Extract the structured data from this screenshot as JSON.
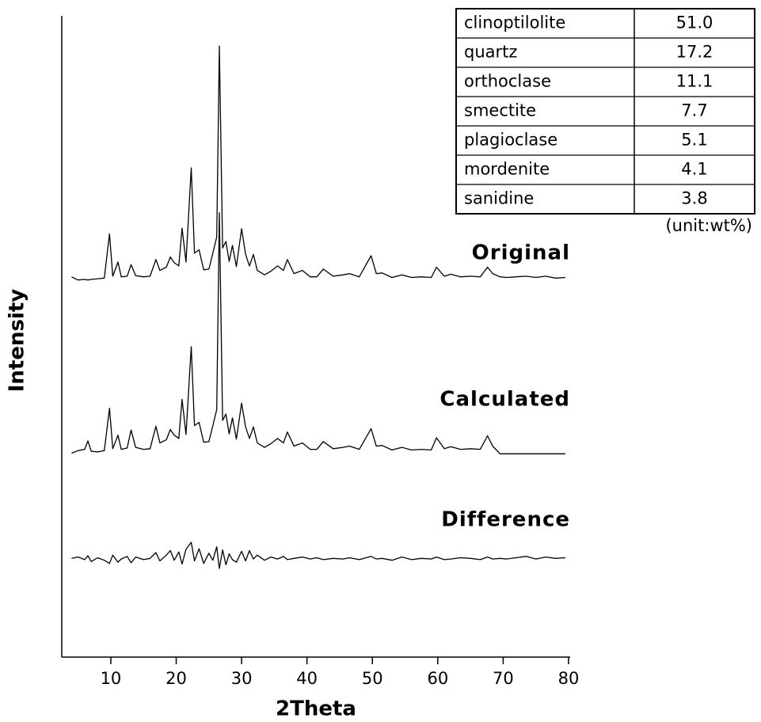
{
  "chart_data": {
    "type": "line",
    "xlabel": "2Theta",
    "ylabel": "Intensity",
    "xlim": [
      2.5,
      80
    ],
    "ylim": [
      0,
      100
    ],
    "xticks": [
      10,
      20,
      30,
      40,
      50,
      60,
      70,
      80
    ],
    "x": [
      4,
      5,
      6,
      6.5,
      7,
      8,
      9,
      9.8,
      10.3,
      11.1,
      11.6,
      12.5,
      13.1,
      13.8,
      15,
      16,
      16.9,
      17.5,
      18.5,
      19.1,
      19.7,
      20.4,
      20.9,
      21.5,
      22.3,
      22.8,
      23.5,
      24.2,
      25,
      25.6,
      26.2,
      26.6,
      27.1,
      27.6,
      28.1,
      28.6,
      29.2,
      30,
      30.6,
      31.2,
      31.8,
      32.4,
      33.5,
      34.5,
      35.5,
      36.4,
      37,
      38,
      39.3,
      40.5,
      41.5,
      42.5,
      44,
      45.5,
      46.5,
      48,
      49.8,
      50.6,
      51.5,
      53,
      54.5,
      56,
      57.5,
      59,
      59.8,
      61,
      62,
      63.5,
      65,
      66.5,
      67.6,
      68.4,
      69.5,
      70.5,
      72,
      73.5,
      75,
      76.5,
      78,
      79.5
    ],
    "series": [
      {
        "name": "Original",
        "color": "#000000",
        "values": [
          59.3,
          58.8,
          58.9,
          58.8,
          58.9,
          59.0,
          59.1,
          66.0,
          59.4,
          61.6,
          59.3,
          59.4,
          61.2,
          59.5,
          59.3,
          59.4,
          62.0,
          60.3,
          60.8,
          62.4,
          61.5,
          61.0,
          66.9,
          61.6,
          76.3,
          63.0,
          63.5,
          60.4,
          60.5,
          63.0,
          65.5,
          95.3,
          63.8,
          64.8,
          61.7,
          64.2,
          60.9,
          66.8,
          62.8,
          61.0,
          62.8,
          60.3,
          59.6,
          60.2,
          61.0,
          60.3,
          62.0,
          59.8,
          60.3,
          59.3,
          59.3,
          60.5,
          59.4,
          59.6,
          59.8,
          59.3,
          62.6,
          59.8,
          59.9,
          59.2,
          59.6,
          59.2,
          59.3,
          59.2,
          60.8,
          59.4,
          59.7,
          59.3,
          59.4,
          59.3,
          60.8,
          59.8,
          59.3,
          59.2,
          59.3,
          59.4,
          59.2,
          59.4,
          59.1,
          59.2
        ]
      },
      {
        "name": "Calculated",
        "color": "#000000",
        "values": [
          31.8,
          32.2,
          32.4,
          33.7,
          32.1,
          32.0,
          32.2,
          38.8,
          32.5,
          34.6,
          32.4,
          32.6,
          35.4,
          32.7,
          32.4,
          32.5,
          36.0,
          33.4,
          33.9,
          35.5,
          34.6,
          34.1,
          40.2,
          34.7,
          48.4,
          36.1,
          36.6,
          33.5,
          33.6,
          36.1,
          38.6,
          69.3,
          36.9,
          37.9,
          34.8,
          37.3,
          34.0,
          39.6,
          35.9,
          34.1,
          35.9,
          33.4,
          32.7,
          33.3,
          34.1,
          33.4,
          35.1,
          32.9,
          33.4,
          32.4,
          32.4,
          33.6,
          32.5,
          32.7,
          32.9,
          32.4,
          35.6,
          32.9,
          33.0,
          32.3,
          32.7,
          32.3,
          32.4,
          32.3,
          34.2,
          32.5,
          32.8,
          32.4,
          32.5,
          32.4,
          34.5,
          32.9,
          31.7,
          31.7,
          31.7,
          31.7,
          31.7,
          31.7,
          31.7,
          31.7
        ]
      },
      {
        "name": "Difference",
        "color": "#000000",
        "values": [
          15.4,
          15.6,
          15.2,
          15.8,
          14.9,
          15.5,
          15.1,
          14.6,
          15.9,
          14.8,
          15.3,
          15.7,
          14.7,
          15.6,
          15.2,
          15.4,
          16.3,
          15.0,
          15.9,
          16.6,
          15.1,
          16.4,
          14.5,
          16.8,
          17.9,
          15.0,
          16.9,
          14.6,
          16.2,
          15.1,
          17.2,
          13.8,
          16.7,
          14.4,
          16.1,
          15.2,
          14.8,
          16.5,
          15.0,
          16.6,
          15.3,
          15.9,
          15.1,
          15.6,
          15.3,
          15.7,
          15.2,
          15.4,
          15.6,
          15.3,
          15.5,
          15.2,
          15.4,
          15.3,
          15.5,
          15.2,
          15.7,
          15.3,
          15.4,
          15.1,
          15.6,
          15.2,
          15.4,
          15.3,
          15.6,
          15.2,
          15.3,
          15.5,
          15.4,
          15.2,
          15.6,
          15.3,
          15.4,
          15.3,
          15.5,
          15.7,
          15.3,
          15.6,
          15.4,
          15.5
        ]
      }
    ]
  },
  "table": {
    "rows": [
      [
        "clinoptilolite",
        "51.0"
      ],
      [
        "quartz",
        "17.2"
      ],
      [
        "orthoclase",
        "11.1"
      ],
      [
        "smectite",
        "7.7"
      ],
      [
        "plagioclase",
        "5.1"
      ],
      [
        "mordenite",
        "4.1"
      ],
      [
        "sanidine",
        "3.8"
      ]
    ],
    "note": "(unit:wt%)"
  }
}
